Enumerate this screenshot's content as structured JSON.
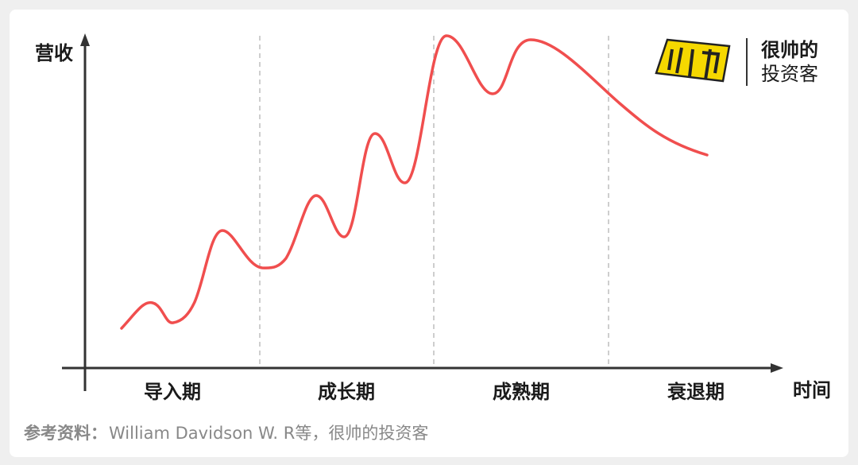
{
  "axes": {
    "y_label": "营收",
    "x_label": "时间"
  },
  "phases": [
    "导入期",
    "成长期",
    "成熟期",
    "衰退期"
  ],
  "logo": {
    "line1": "很帅的",
    "line2": "投资客"
  },
  "source": {
    "label": "参考资料：",
    "text": "William Davidson W. R等，很帅的投资客"
  }
}
